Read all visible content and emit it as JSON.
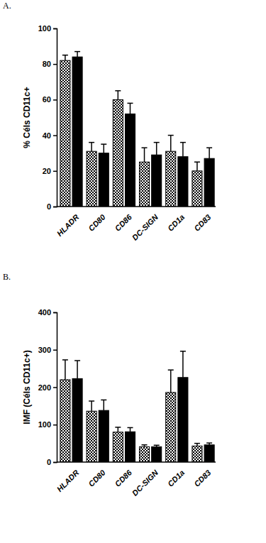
{
  "chart_data": [
    {
      "type": "bar",
      "title": "A.",
      "y_label": "% Céls CD11c+",
      "categories": [
        "HLADR",
        "CD80",
        "CD86",
        "DC-SIGN",
        "CD1a",
        "CD83"
      ],
      "series": [
        {
          "color": "checkered",
          "values": [
            82,
            31,
            60,
            25,
            31,
            20
          ],
          "errors": [
            3,
            5,
            5,
            8,
            9,
            5
          ]
        },
        {
          "color": "#000000",
          "values": [
            84,
            30,
            52,
            29,
            28,
            27
          ],
          "errors": [
            3,
            5,
            6,
            7,
            8,
            6
          ]
        }
      ],
      "ylim": [
        0,
        100
      ],
      "yticks": [
        0,
        20,
        40,
        60,
        80,
        100
      ]
    },
    {
      "type": "bar",
      "title": "B.",
      "y_label": "IMF (Céls CD11c+)",
      "categories": [
        "HLADR",
        "CD80",
        "CD86",
        "DC-SIGN",
        "CD1a",
        "CD83"
      ],
      "series": [
        {
          "color": "checkered",
          "values": [
            220,
            136,
            80,
            41,
            186,
            43
          ],
          "errors": [
            53,
            27,
            13,
            5,
            60,
            7
          ]
        },
        {
          "color": "#000000",
          "values": [
            223,
            138,
            81,
            41,
            226,
            46
          ],
          "errors": [
            48,
            28,
            11,
            4,
            70,
            5
          ]
        }
      ],
      "ylim": [
        0,
        400
      ],
      "yticks": [
        0,
        100,
        200,
        300,
        400
      ]
    }
  ]
}
